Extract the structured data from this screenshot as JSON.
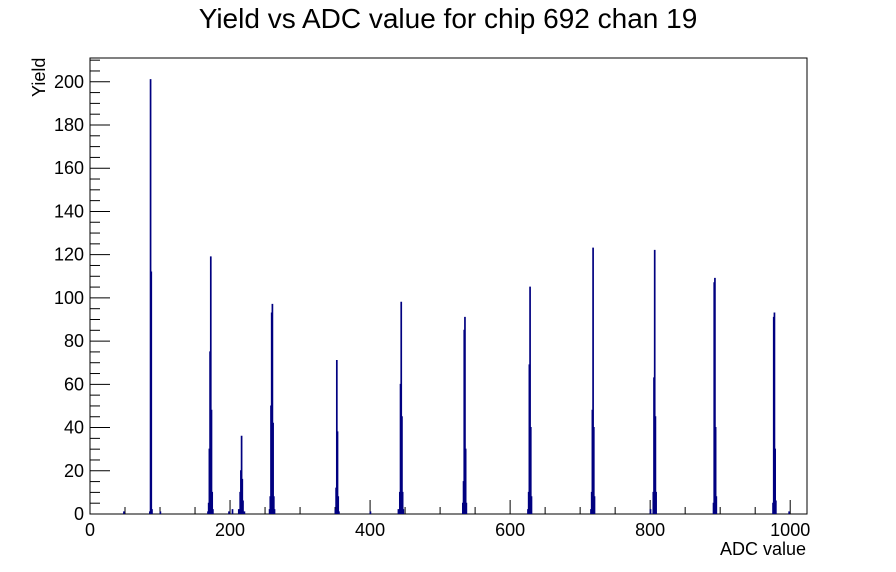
{
  "chart_data": {
    "type": "histogram",
    "title": "Yield vs ADC value for chip 692 chan 19",
    "xlabel": "ADC value",
    "ylabel": "Yield",
    "xlim": [
      0,
      1024
    ],
    "ylim": [
      0,
      211
    ],
    "x_ticks": [
      0,
      200,
      400,
      600,
      800,
      1000
    ],
    "y_ticks": [
      0,
      20,
      40,
      60,
      80,
      100,
      120,
      140,
      160,
      180,
      200
    ],
    "bin_width": 1,
    "series": [
      {
        "color": "#000080",
        "bins": [
          {
            "x": 48,
            "y": 1
          },
          {
            "x": 85,
            "y": 1
          },
          {
            "x": 86,
            "y": 201
          },
          {
            "x": 87,
            "y": 112
          },
          {
            "x": 88,
            "y": 2
          },
          {
            "x": 100,
            "y": 1
          },
          {
            "x": 168,
            "y": 1
          },
          {
            "x": 169,
            "y": 5
          },
          {
            "x": 170,
            "y": 30
          },
          {
            "x": 171,
            "y": 75
          },
          {
            "x": 172,
            "y": 119
          },
          {
            "x": 173,
            "y": 48
          },
          {
            "x": 174,
            "y": 10
          },
          {
            "x": 175,
            "y": 2
          },
          {
            "x": 198,
            "y": 1
          },
          {
            "x": 203,
            "y": 2
          },
          {
            "x": 212,
            "y": 2
          },
          {
            "x": 214,
            "y": 10
          },
          {
            "x": 215,
            "y": 20
          },
          {
            "x": 216,
            "y": 36
          },
          {
            "x": 217,
            "y": 16
          },
          {
            "x": 218,
            "y": 6
          },
          {
            "x": 220,
            "y": 1
          },
          {
            "x": 256,
            "y": 2
          },
          {
            "x": 257,
            "y": 8
          },
          {
            "x": 258,
            "y": 50
          },
          {
            "x": 259,
            "y": 93
          },
          {
            "x": 260,
            "y": 97
          },
          {
            "x": 261,
            "y": 42
          },
          {
            "x": 262,
            "y": 8
          },
          {
            "x": 263,
            "y": 2
          },
          {
            "x": 350,
            "y": 2
          },
          {
            "x": 351,
            "y": 12
          },
          {
            "x": 352,
            "y": 71
          },
          {
            "x": 353,
            "y": 38
          },
          {
            "x": 354,
            "y": 8
          },
          {
            "x": 355,
            "y": 1
          },
          {
            "x": 400,
            "y": 1
          },
          {
            "x": 440,
            "y": 2
          },
          {
            "x": 442,
            "y": 10
          },
          {
            "x": 443,
            "y": 60
          },
          {
            "x": 444,
            "y": 98
          },
          {
            "x": 445,
            "y": 45
          },
          {
            "x": 446,
            "y": 10
          },
          {
            "x": 447,
            "y": 2
          },
          {
            "x": 532,
            "y": 5
          },
          {
            "x": 533,
            "y": 15
          },
          {
            "x": 534,
            "y": 85
          },
          {
            "x": 535,
            "y": 91
          },
          {
            "x": 536,
            "y": 30
          },
          {
            "x": 537,
            "y": 5
          },
          {
            "x": 625,
            "y": 2
          },
          {
            "x": 626,
            "y": 10
          },
          {
            "x": 627,
            "y": 69
          },
          {
            "x": 628,
            "y": 105
          },
          {
            "x": 629,
            "y": 40
          },
          {
            "x": 630,
            "y": 8
          },
          {
            "x": 715,
            "y": 2
          },
          {
            "x": 716,
            "y": 10
          },
          {
            "x": 717,
            "y": 48
          },
          {
            "x": 718,
            "y": 123
          },
          {
            "x": 719,
            "y": 40
          },
          {
            "x": 720,
            "y": 8
          },
          {
            "x": 800,
            "y": 2
          },
          {
            "x": 804,
            "y": 10
          },
          {
            "x": 805,
            "y": 63
          },
          {
            "x": 806,
            "y": 122
          },
          {
            "x": 807,
            "y": 45
          },
          {
            "x": 808,
            "y": 10
          },
          {
            "x": 890,
            "y": 5
          },
          {
            "x": 891,
            "y": 107
          },
          {
            "x": 892,
            "y": 109
          },
          {
            "x": 893,
            "y": 40
          },
          {
            "x": 894,
            "y": 8
          },
          {
            "x": 975,
            "y": 5
          },
          {
            "x": 976,
            "y": 91
          },
          {
            "x": 977,
            "y": 93
          },
          {
            "x": 978,
            "y": 30
          },
          {
            "x": 979,
            "y": 6
          },
          {
            "x": 998,
            "y": 1
          }
        ]
      }
    ]
  }
}
